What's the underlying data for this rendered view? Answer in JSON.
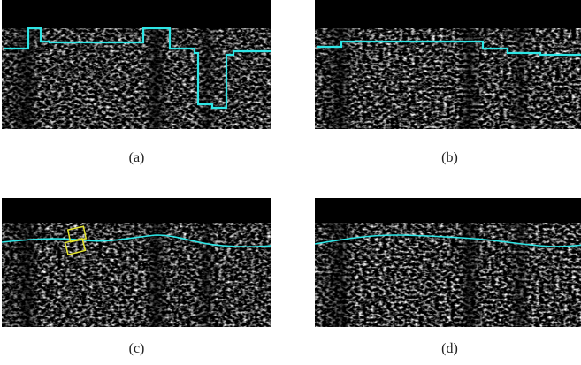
{
  "figure": {
    "panels": [
      {
        "id": "a",
        "caption": "(a)",
        "contour": "step-detailed",
        "boxes": false
      },
      {
        "id": "b",
        "caption": "(b)",
        "contour": "step-smooth",
        "boxes": false
      },
      {
        "id": "c",
        "caption": "(c)",
        "contour": "curve",
        "boxes": true
      },
      {
        "id": "d",
        "caption": "(d)",
        "contour": "curve",
        "boxes": false
      }
    ],
    "colors": {
      "contour": "#2ee6e6",
      "box": "#e6e62e",
      "background": "#000000"
    }
  }
}
